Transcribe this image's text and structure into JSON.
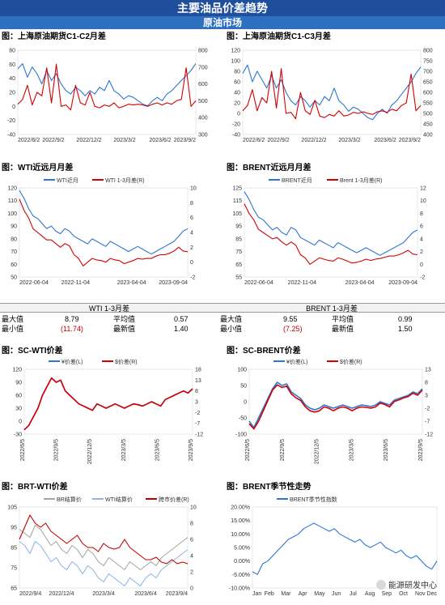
{
  "header": {
    "title": "主要油品价差趋势",
    "subtitle": "原油市场"
  },
  "stats": [
    {
      "title": "WTI 1-3月差",
      "max_label": "最大值",
      "max_value": "8.79",
      "avg_label": "平均值",
      "avg_value": "0.57",
      "min_label": "最小值",
      "min_value": "(11.74)",
      "latest_label": "最新值",
      "latest_value": "1.40"
    },
    {
      "title": "BRENT 1-3月差",
      "max_label": "最大值",
      "max_value": "9.55",
      "avg_label": "平均值",
      "avg_value": "0.99",
      "min_label": "最小值",
      "min_value": "(7.25)",
      "latest_label": "最新值",
      "latest_value": "1.50"
    }
  ],
  "watermark": "能源研发中心",
  "colors": {
    "blue": "#2e75d2",
    "red": "#d20000",
    "darkred": "#c00000",
    "gray": "#a6a6a6",
    "lightblue": "#8fb4e3"
  },
  "chart_data": [
    {
      "id": "c1",
      "type": "line",
      "title": "图：上海原油期货C1-C2月差",
      "xlabels": [
        "2022/6/2",
        "2022/9/2",
        "2022/12/2",
        "2023/3/2",
        "2023/6/2",
        "2023/9/2"
      ],
      "ylim_left": [
        -40,
        80
      ],
      "yticks_left": [
        "80",
        "60",
        "40",
        "20",
        "0",
        "-20",
        "-40"
      ],
      "ylim_right": [
        300,
        800
      ],
      "yticks_right": [
        "800",
        "700",
        "600",
        "500",
        "400",
        "300"
      ],
      "series": [
        {
          "axis": "right",
          "color": "#2e75d2",
          "values": [
            690,
            720,
            640,
            700,
            660,
            600,
            680,
            620,
            660,
            600,
            560,
            540,
            580,
            560,
            530,
            560,
            540,
            580,
            560,
            620,
            560,
            540,
            510,
            530,
            520,
            500,
            480,
            470,
            500,
            520,
            500,
            540,
            560,
            590,
            620,
            650,
            680,
            720
          ]
        },
        {
          "axis": "left",
          "color": "#d20000",
          "values": [
            3,
            10,
            30,
            2,
            20,
            15,
            55,
            5,
            60,
            0,
            2,
            -5,
            30,
            5,
            2,
            20,
            0,
            -2,
            2,
            0,
            5,
            -2,
            0,
            3,
            2,
            3,
            2,
            0,
            3,
            5,
            2,
            5,
            3,
            8,
            10,
            55,
            0,
            8
          ]
        }
      ]
    },
    {
      "id": "c2",
      "type": "line",
      "title": "图：上海原油期货C1-C3月差",
      "xlabels": [
        "2022/6/2",
        "2022/9/2",
        "2022/12/2",
        "2023/3/2",
        "2023/6/2",
        "2023/9/2"
      ],
      "ylim_left": [
        -40,
        120
      ],
      "yticks_left": [
        "120",
        "100",
        "80",
        "60",
        "40",
        "20",
        "0",
        "-20",
        "-40"
      ],
      "ylim_right": [
        400,
        800
      ],
      "yticks_right": [
        "800",
        "750",
        "700",
        "650",
        "600",
        "550",
        "500",
        "450",
        "400"
      ],
      "series": [
        {
          "axis": "right",
          "color": "#2e75d2",
          "values": [
            690,
            730,
            650,
            700,
            660,
            620,
            680,
            620,
            660,
            600,
            560,
            540,
            580,
            560,
            530,
            560,
            540,
            580,
            560,
            620,
            560,
            540,
            510,
            530,
            520,
            500,
            480,
            470,
            500,
            520,
            500,
            540,
            560,
            590,
            620,
            650,
            690,
            720
          ]
        },
        {
          "axis": "left",
          "color": "#d20000",
          "values": [
            5,
            15,
            45,
            5,
            30,
            20,
            80,
            10,
            85,
            0,
            2,
            -10,
            40,
            5,
            -2,
            25,
            -5,
            -8,
            -2,
            -5,
            5,
            -5,
            -3,
            2,
            0,
            3,
            0,
            -2,
            3,
            5,
            2,
            8,
            5,
            15,
            20,
            75,
            5,
            15
          ]
        }
      ]
    },
    {
      "id": "c3",
      "type": "line",
      "title": "图：WTI近远月月差",
      "xlabels": [
        "2022-06-04",
        "2022-11-04",
        "2023-04-04",
        "2023-09-04"
      ],
      "ylim_left": [
        50,
        120
      ],
      "yticks_left": [
        "120",
        "110",
        "100",
        "90",
        "80",
        "70",
        "60",
        "50"
      ],
      "ylim_right": [
        -2,
        10
      ],
      "yticks_right": [
        "10",
        "8",
        "6",
        "4",
        "2",
        "0",
        "-2"
      ],
      "legend": [
        "WTI近月",
        "WTI 1-3月差(R)"
      ],
      "series": [
        {
          "name": "WTI近月",
          "axis": "left",
          "color": "#2e75d2",
          "values": [
            118,
            112,
            104,
            98,
            96,
            92,
            88,
            90,
            86,
            84,
            88,
            86,
            82,
            80,
            78,
            76,
            80,
            78,
            76,
            74,
            78,
            76,
            74,
            72,
            70,
            72,
            74,
            72,
            70,
            68,
            70,
            72,
            74,
            76,
            78,
            82,
            86,
            88
          ]
        },
        {
          "name": "WTI 1-3月差(R)",
          "axis": "right",
          "color": "#d20000",
          "values": [
            8.5,
            7,
            6,
            4.5,
            4,
            3.5,
            3,
            3,
            2.5,
            2,
            2.5,
            2.2,
            1,
            0.5,
            -0.5,
            0,
            0.5,
            0.3,
            0.2,
            0,
            0.5,
            0.3,
            0.2,
            -0.2,
            0,
            0.2,
            0.5,
            0.4,
            0.5,
            0.5,
            0.8,
            1,
            1,
            1.2,
            1.5,
            2,
            1.5,
            1.4
          ]
        }
      ]
    },
    {
      "id": "c4",
      "type": "line",
      "title": "图：BRENT近远月月差",
      "xlabels": [
        "2022-06-04",
        "2022-11-04",
        "2023-04-04",
        "2023-09-04"
      ],
      "ylim_left": [
        55,
        125
      ],
      "yticks_left": [
        "125",
        "115",
        "105",
        "95",
        "85",
        "75",
        "65",
        "55"
      ],
      "ylim_right": [
        -2,
        12
      ],
      "yticks_right": [
        "12",
        "10",
        "8",
        "6",
        "4",
        "2",
        "0",
        "-2"
      ],
      "legend": [
        "BRENT近月",
        "Brent 1-3月差(R)"
      ],
      "series": [
        {
          "name": "BRENT近月",
          "axis": "left",
          "color": "#2e75d2",
          "values": [
            122,
            116,
            108,
            102,
            100,
            96,
            92,
            94,
            90,
            88,
            94,
            92,
            86,
            84,
            82,
            80,
            84,
            82,
            80,
            78,
            82,
            80,
            78,
            76,
            74,
            76,
            78,
            76,
            74,
            72,
            74,
            76,
            78,
            80,
            82,
            86,
            90,
            92
          ]
        },
        {
          "name": "Brent 1-3月差(R)",
          "axis": "right",
          "color": "#d20000",
          "values": [
            9.5,
            8,
            7,
            5.5,
            5,
            4.5,
            4,
            4.2,
            3.5,
            3,
            3.5,
            3,
            1.5,
            1,
            0,
            0.5,
            1,
            0.8,
            0.6,
            0.5,
            1,
            0.8,
            0.5,
            0.2,
            0.3,
            0.5,
            0.8,
            0.6,
            0.8,
            0.9,
            1.1,
            1.3,
            1.3,
            1.5,
            1.8,
            2.2,
            1.6,
            1.5
          ]
        }
      ]
    },
    {
      "id": "c5",
      "type": "line",
      "title": "图：SC-WTI价差",
      "xlabels": [
        "2022/6/5",
        "2022/9/5",
        "2022/12/5",
        "2023/3/5",
        "2023/6/5",
        "2023/9/5"
      ],
      "ylim_left": [
        -30,
        120
      ],
      "yticks_left": [
        "120",
        "90",
        "60",
        "30",
        "0",
        "-30"
      ],
      "ylim_right": [
        -12,
        18
      ],
      "yticks_right": [
        "18",
        "13",
        "8",
        "3",
        "-2",
        "-7",
        "-12"
      ],
      "legend": [
        "¥价差(L)",
        "$价差(R)"
      ],
      "series": [
        {
          "name": "¥价差(L)",
          "axis": "left",
          "color": "#2e75d2",
          "values": [
            -20,
            -10,
            10,
            30,
            60,
            80,
            100,
            90,
            95,
            70,
            60,
            50,
            40,
            35,
            30,
            25,
            40,
            35,
            30,
            35,
            40,
            35,
            30,
            35,
            40,
            38,
            35,
            40,
            45,
            40,
            35,
            50,
            55,
            60,
            65,
            70,
            65,
            75
          ]
        },
        {
          "name": "$价差(R)",
          "axis": "right",
          "color": "#d20000",
          "values": [
            -10,
            -8,
            -4,
            0,
            6,
            10,
            14,
            12,
            13,
            8,
            6,
            4,
            2,
            1,
            0,
            -1,
            2,
            1,
            0,
            1,
            2,
            1,
            0,
            1,
            2,
            1.6,
            1,
            2,
            3,
            2,
            1,
            4,
            5,
            6,
            7,
            8,
            7,
            9
          ]
        }
      ]
    },
    {
      "id": "c6",
      "type": "line",
      "title": "图：SC-BRENT价差",
      "xlabels": [
        "2022/6/5",
        "2022/9/5",
        "2022/12/5",
        "2023/3/5",
        "2023/6/5",
        "2023/9/5"
      ],
      "ylim_left": [
        -100,
        100
      ],
      "yticks_left": [
        "100",
        "50",
        "0",
        "-50",
        "-100"
      ],
      "ylim_right": [
        -12,
        13
      ],
      "yticks_right": [
        "13",
        "8",
        "3",
        "-2",
        "-7",
        "-12"
      ],
      "legend": [
        "¥价差(L)",
        "$价差(R)"
      ],
      "series": [
        {
          "name": "¥价差(L)",
          "axis": "left",
          "color": "#2e75d2",
          "values": [
            -60,
            -80,
            -50,
            -20,
            10,
            40,
            60,
            50,
            55,
            30,
            20,
            10,
            -10,
            -20,
            -25,
            -20,
            -10,
            -15,
            -20,
            -15,
            -10,
            -15,
            -20,
            -15,
            -10,
            -12,
            -15,
            -10,
            0,
            -5,
            -10,
            5,
            10,
            15,
            20,
            30,
            25,
            40
          ]
        },
        {
          "name": "$价差(R)",
          "axis": "right",
          "color": "#d20000",
          "values": [
            -8,
            -10,
            -7,
            -3,
            1,
            5,
            7,
            6,
            6.5,
            3.5,
            2,
            1,
            -1.5,
            -3,
            -3.5,
            -3,
            -1.5,
            -2,
            -3,
            -2,
            -1.5,
            -2,
            -3,
            -2,
            -1.5,
            -1.7,
            -2,
            -1.5,
            0,
            -0.6,
            -1.5,
            0.6,
            1.2,
            2,
            2.5,
            3.8,
            3,
            5
          ]
        }
      ]
    },
    {
      "id": "c7",
      "type": "line",
      "title": "图：BRT-WTI价差",
      "xlabels": [
        "2022/9/4",
        "2022/12/4",
        "2023/3/4",
        "2023/6/4",
        "2023/9/4"
      ],
      "ylim_left": [
        65,
        105
      ],
      "yticks_left": [
        "105",
        "95",
        "85",
        "75",
        "65"
      ],
      "ylim_right": [
        0,
        10
      ],
      "yticks_right": [
        "10",
        "8",
        "6",
        "4",
        "2",
        "0"
      ],
      "legend": [
        "BR结算价",
        "WTI结算价",
        "跨市价差(R)"
      ],
      "series": [
        {
          "name": "BR结算价",
          "axis": "left",
          "color": "#a6a6a6",
          "values": [
            94,
            92,
            90,
            96,
            94,
            90,
            86,
            88,
            84,
            82,
            86,
            84,
            80,
            84,
            82,
            78,
            76,
            80,
            78,
            76,
            74,
            78,
            76,
            74,
            76,
            78,
            76,
            80,
            82,
            84,
            86,
            88,
            90
          ]
        },
        {
          "name": "WTI结算价",
          "axis": "left",
          "color": "#8fb4e3",
          "values": [
            88,
            86,
            82,
            88,
            86,
            82,
            78,
            80,
            76,
            74,
            78,
            76,
            72,
            76,
            74,
            70,
            68,
            72,
            70,
            68,
            66,
            70,
            68,
            66,
            70,
            72,
            70,
            74,
            76,
            78,
            80,
            82,
            84
          ]
        },
        {
          "name": "跨市价差(R)",
          "axis": "right",
          "color": "#c00000",
          "values": [
            6,
            7.5,
            9,
            8,
            7.5,
            8,
            7,
            6.5,
            6,
            5.5,
            6,
            6.5,
            5.5,
            5,
            5,
            4.5,
            5.5,
            5,
            4.8,
            5,
            6,
            5,
            4.5,
            4,
            3.5,
            3.5,
            3.8,
            3.2,
            3,
            3.5,
            3,
            3.2,
            3
          ]
        }
      ]
    },
    {
      "id": "c8",
      "type": "line",
      "title": "图：BRENT季节性走势",
      "xlabels": [
        "Jan",
        "Feb",
        "Mar",
        "Apr",
        "May",
        "Jun",
        "Jul",
        "Aug",
        "Sep",
        "Oct",
        "Nov",
        "Dec"
      ],
      "ylim_left": [
        -10,
        20
      ],
      "yticks_left": [
        "20.00%",
        "15.00%",
        "10.00%",
        "5.00%",
        "0.00%",
        "-5.00%",
        "-10.00%"
      ],
      "legend": [
        "BRENT季节性指数"
      ],
      "series": [
        {
          "name": "BRENT季节性指数",
          "axis": "left",
          "color": "#2e75d2",
          "values": [
            -4,
            -5,
            -1,
            0,
            2,
            4,
            6,
            8,
            9,
            10,
            12,
            13,
            14,
            13,
            12,
            11,
            12,
            10,
            9,
            8,
            7,
            8,
            6,
            5,
            6,
            7,
            5,
            4,
            3,
            4,
            2,
            1,
            2,
            0,
            -2,
            -3,
            0
          ]
        }
      ]
    }
  ]
}
